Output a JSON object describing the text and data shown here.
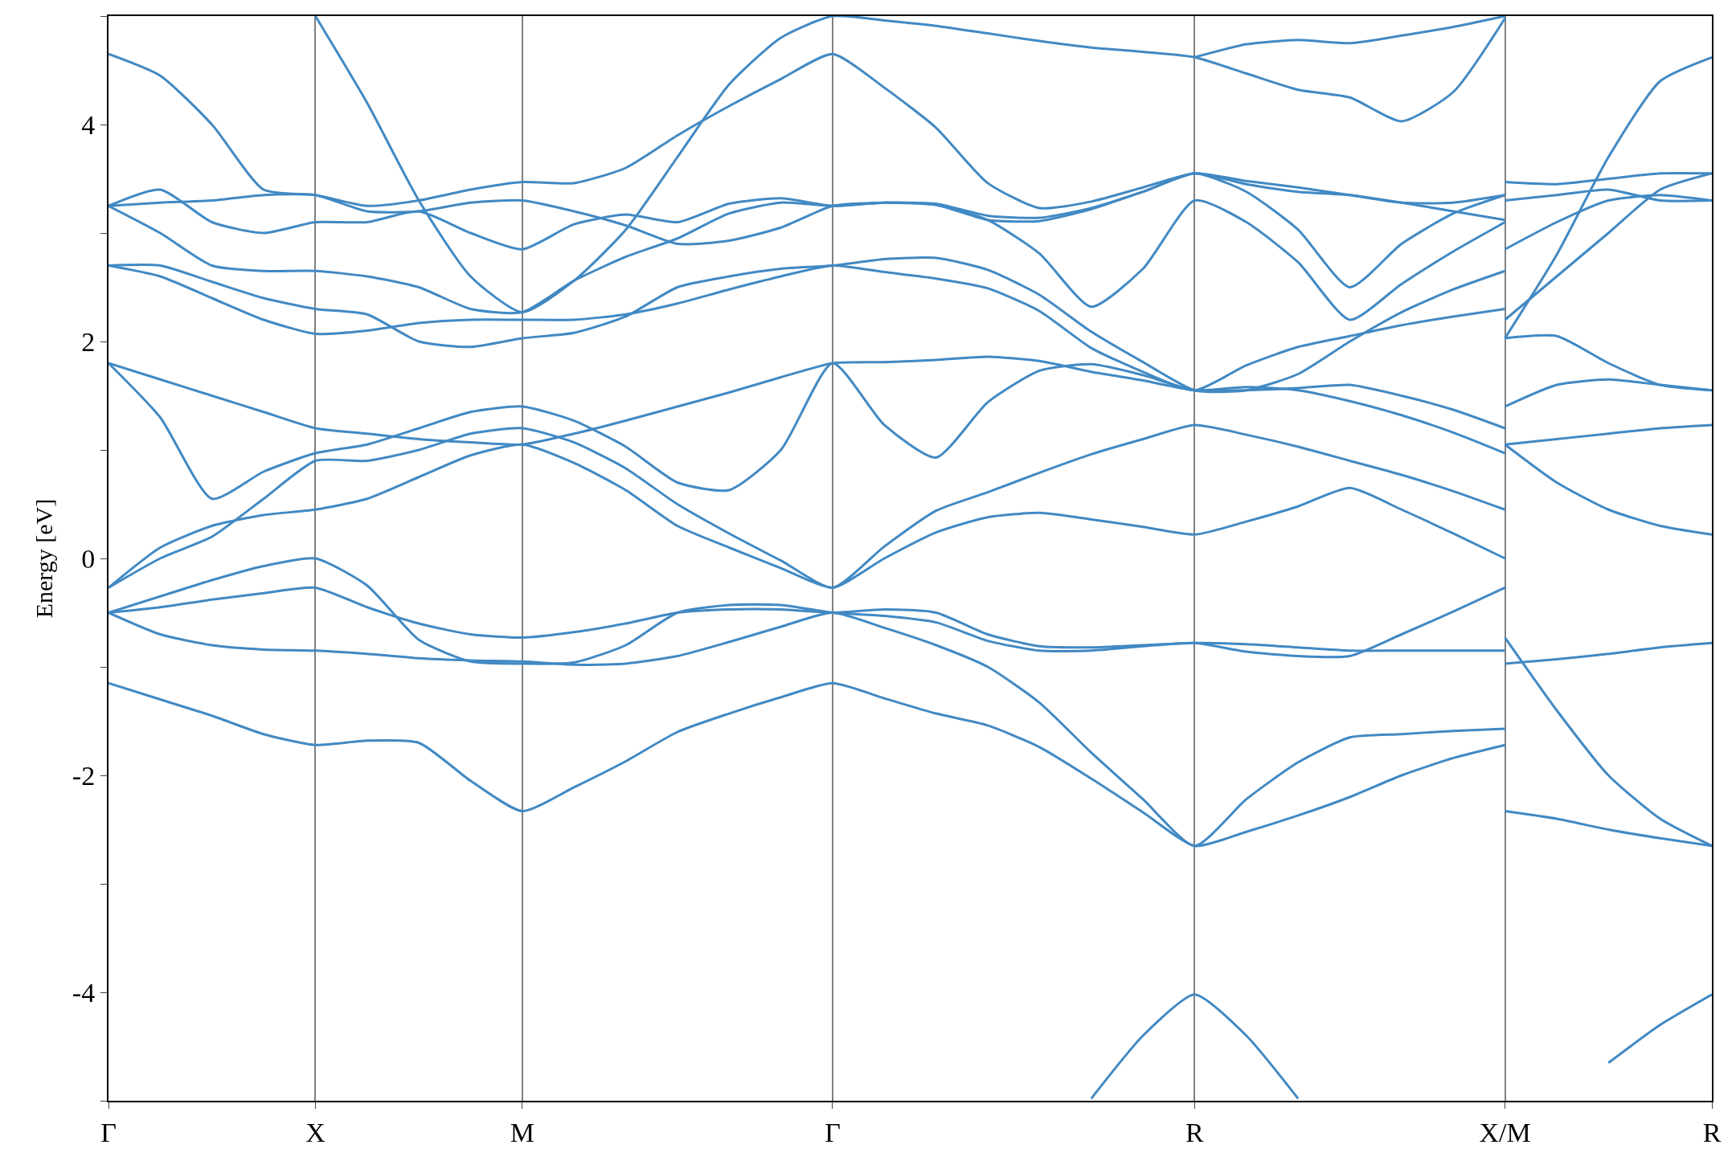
{
  "chart_data": {
    "type": "line",
    "ylabel": "Energy [eV]",
    "color": "#4189c3",
    "categories": [
      "Γ",
      null,
      null,
      null,
      "X",
      null,
      null,
      null,
      "M",
      null,
      null,
      null,
      null,
      null,
      "Γ",
      null,
      null,
      null,
      null,
      null,
      null,
      "R",
      null,
      null,
      null,
      null,
      null,
      "X/M",
      null,
      null,
      null,
      "R"
    ],
    "series": [
      {
        "values": [
          -1.15,
          -1.3,
          -1.45,
          -1.62,
          -1.72,
          -1.68,
          -1.7,
          -2.05,
          -2.33,
          -2.11,
          -1.87,
          -1.6,
          -1.43,
          -1.28,
          -1.15,
          -1.29,
          -1.43,
          -1.54,
          -1.74,
          -2.03,
          -2.34,
          -2.65,
          -2.52,
          -2.37,
          -2.2,
          -2.0,
          -1.84,
          -1.72,
          null,
          null,
          null,
          null
        ]
      },
      {
        "values": [
          -0.5,
          -0.7,
          -0.8,
          -0.84,
          -0.85,
          -0.88,
          -0.92,
          -0.94,
          -0.95,
          -0.98,
          -0.97,
          -0.9,
          -0.77,
          -0.63,
          -0.5,
          -0.64,
          -0.8,
          -1.0,
          -1.33,
          -1.79,
          -2.22,
          -2.65,
          -2.22,
          -1.88,
          -1.65,
          -1.62,
          -1.59,
          -1.57,
          null,
          null,
          null,
          null
        ]
      },
      {
        "values": [
          -0.5,
          -0.45,
          -0.38,
          -0.32,
          -0.27,
          -0.45,
          -0.6,
          -0.7,
          -0.73,
          -0.68,
          -0.6,
          -0.5,
          -0.47,
          -0.47,
          -0.5,
          -0.47,
          -0.5,
          -0.7,
          -0.81,
          -0.82,
          -0.8,
          -0.78,
          -0.79,
          -0.82,
          -0.85,
          -0.85,
          -0.85,
          -0.85,
          null,
          null,
          null,
          null
        ]
      },
      {
        "values": [
          -0.5,
          -0.35,
          -0.2,
          -0.07,
          0.0,
          -0.25,
          -0.75,
          -0.95,
          -0.97,
          -0.96,
          -0.8,
          -0.5,
          -0.43,
          -0.43,
          -0.5,
          -0.53,
          -0.59,
          -0.76,
          -0.85,
          -0.85,
          -0.81,
          -0.78,
          -0.86,
          -0.9,
          -0.9,
          -0.7,
          -0.49,
          -0.27,
          null,
          null,
          null,
          null
        ]
      },
      {
        "values": [
          -0.27,
          0.1,
          0.3,
          0.4,
          0.45,
          0.55,
          0.75,
          0.95,
          1.05,
          0.88,
          0.63,
          0.3,
          0.1,
          -0.09,
          -0.27,
          0.0,
          0.24,
          0.38,
          0.42,
          0.36,
          0.29,
          0.22,
          0.34,
          0.48,
          0.65,
          0.45,
          0.23,
          0.0,
          null,
          null,
          null,
          null
        ]
      },
      {
        "values": [
          -0.27,
          0.0,
          0.2,
          0.55,
          0.9,
          0.9,
          1.0,
          1.15,
          1.2,
          1.07,
          0.83,
          0.5,
          0.23,
          -0.02,
          -0.27,
          0.11,
          0.44,
          0.61,
          0.79,
          0.96,
          1.1,
          1.23,
          1.14,
          1.03,
          0.9,
          0.77,
          0.62,
          0.45,
          null,
          null,
          null,
          null
        ]
      },
      {
        "values": [
          1.8,
          1.3,
          0.55,
          0.8,
          0.97,
          1.05,
          1.2,
          1.35,
          1.4,
          1.27,
          1.03,
          0.7,
          0.63,
          1.0,
          1.8,
          1.23,
          0.93,
          1.44,
          1.73,
          1.79,
          1.69,
          1.55,
          1.58,
          1.55,
          1.45,
          1.32,
          1.16,
          0.97,
          null,
          null,
          null,
          null
        ]
      },
      {
        "values": [
          1.8,
          1.65,
          1.5,
          1.35,
          1.2,
          1.15,
          1.1,
          1.07,
          1.05,
          1.15,
          1.27,
          1.4,
          1.53,
          1.67,
          1.8,
          1.81,
          1.83,
          1.86,
          1.82,
          1.72,
          1.64,
          1.55,
          1.55,
          1.57,
          1.6,
          1.5,
          1.37,
          1.2,
          null,
          null,
          null,
          null
        ]
      },
      {
        "values": [
          2.7,
          2.6,
          2.4,
          2.2,
          2.07,
          2.1,
          2.17,
          2.2,
          2.2,
          2.2,
          2.25,
          2.35,
          2.48,
          2.6,
          2.7,
          2.64,
          2.58,
          2.49,
          2.28,
          1.94,
          1.72,
          1.55,
          1.78,
          1.95,
          2.05,
          2.15,
          2.23,
          2.3,
          null,
          null,
          null,
          null
        ]
      },
      {
        "values": [
          2.7,
          2.7,
          2.55,
          2.4,
          2.3,
          2.25,
          2.0,
          1.95,
          2.03,
          2.08,
          2.23,
          2.5,
          2.6,
          2.67,
          2.7,
          2.76,
          2.77,
          2.66,
          2.43,
          2.09,
          1.81,
          1.55,
          1.55,
          1.7,
          2.0,
          2.27,
          2.48,
          2.65,
          null,
          null,
          null,
          null
        ]
      },
      {
        "values": [
          3.25,
          3.0,
          2.7,
          2.65,
          2.65,
          2.6,
          2.5,
          2.3,
          2.27,
          2.56,
          2.78,
          2.95,
          3.18,
          3.28,
          3.25,
          3.28,
          3.26,
          3.12,
          2.81,
          2.32,
          2.67,
          3.3,
          3.1,
          2.73,
          2.2,
          2.53,
          2.83,
          3.1,
          null,
          null,
          null,
          null
        ]
      },
      {
        "values": [
          3.25,
          3.4,
          3.1,
          3.0,
          3.1,
          3.1,
          3.2,
          3.0,
          2.85,
          3.08,
          3.17,
          3.1,
          3.27,
          3.32,
          3.25,
          3.28,
          3.26,
          3.12,
          3.11,
          3.22,
          3.38,
          3.55,
          3.38,
          3.03,
          2.5,
          2.9,
          3.18,
          3.35,
          null,
          null,
          null,
          null
        ]
      },
      {
        "values": [
          3.25,
          3.28,
          3.3,
          3.35,
          3.35,
          3.2,
          3.2,
          3.28,
          3.3,
          3.2,
          3.07,
          2.9,
          2.93,
          3.05,
          3.25,
          3.28,
          3.27,
          3.16,
          3.14,
          3.23,
          3.38,
          3.55,
          3.45,
          3.38,
          3.35,
          3.28,
          3.2,
          3.12,
          null,
          null,
          null,
          null
        ]
      },
      {
        "values": [
          4.65,
          4.45,
          4.0,
          3.4,
          3.35,
          3.25,
          3.3,
          3.4,
          3.47,
          3.46,
          3.6,
          3.9,
          4.17,
          4.42,
          4.65,
          4.34,
          3.97,
          3.46,
          3.23,
          3.29,
          3.42,
          3.55,
          3.48,
          3.42,
          3.35,
          3.28,
          3.28,
          3.35,
          null,
          null,
          null,
          null
        ]
      },
      {
        "values": [
          null,
          null,
          null,
          null,
          5.0,
          4.2,
          3.3,
          2.6,
          2.27,
          2.56,
          3.03,
          3.7,
          4.37,
          4.8,
          5.0,
          4.96,
          4.91,
          4.84,
          4.77,
          4.71,
          4.67,
          4.62,
          4.47,
          4.32,
          4.25,
          4.03,
          4.3,
          4.98,
          null,
          null,
          null,
          null
        ]
      },
      {
        "values": [
          null,
          null,
          null,
          null,
          null,
          null,
          null,
          null,
          null,
          null,
          null,
          null,
          null,
          null,
          null,
          null,
          null,
          null,
          null,
          null,
          null,
          4.62,
          4.74,
          4.78,
          4.75,
          4.82,
          4.9,
          5.0,
          null,
          null,
          null,
          null
        ]
      },
      {
        "values": [
          null,
          null,
          null,
          null,
          null,
          null,
          null,
          null,
          null,
          null,
          null,
          null,
          null,
          null,
          null,
          null,
          null,
          null,
          null,
          -4.98,
          -4.4,
          -4.02,
          -4.4,
          -4.98,
          null,
          null,
          null,
          null,
          null,
          null,
          null,
          null
        ]
      },
      {
        "values": [
          null,
          null,
          null,
          null,
          null,
          null,
          null,
          null,
          null,
          null,
          null,
          null,
          null,
          null,
          null,
          null,
          null,
          null,
          null,
          null,
          null,
          null,
          null,
          null,
          null,
          null,
          null,
          -2.33,
          -2.4,
          -2.5,
          -2.58,
          -2.65
        ]
      },
      {
        "values": [
          null,
          null,
          null,
          null,
          null,
          null,
          null,
          null,
          null,
          null,
          null,
          null,
          null,
          null,
          null,
          null,
          null,
          null,
          null,
          null,
          null,
          null,
          null,
          null,
          null,
          null,
          null,
          -0.73,
          -1.4,
          -2.0,
          -2.4,
          -2.65
        ]
      },
      {
        "values": [
          null,
          null,
          null,
          null,
          null,
          null,
          null,
          null,
          null,
          null,
          null,
          null,
          null,
          null,
          null,
          null,
          null,
          null,
          null,
          null,
          null,
          null,
          null,
          null,
          null,
          null,
          null,
          -0.97,
          -0.93,
          -0.88,
          -0.82,
          -0.78
        ]
      },
      {
        "values": [
          null,
          null,
          null,
          null,
          null,
          null,
          null,
          null,
          null,
          null,
          null,
          null,
          null,
          null,
          null,
          null,
          null,
          null,
          null,
          null,
          null,
          null,
          null,
          null,
          null,
          null,
          null,
          1.05,
          0.7,
          0.45,
          0.3,
          0.22
        ]
      },
      {
        "values": [
          null,
          null,
          null,
          null,
          null,
          null,
          null,
          null,
          null,
          null,
          null,
          null,
          null,
          null,
          null,
          null,
          null,
          null,
          null,
          null,
          null,
          null,
          null,
          null,
          null,
          null,
          null,
          1.05,
          1.1,
          1.15,
          1.2,
          1.23
        ]
      },
      {
        "values": [
          null,
          null,
          null,
          null,
          null,
          null,
          null,
          null,
          null,
          null,
          null,
          null,
          null,
          null,
          null,
          null,
          null,
          null,
          null,
          null,
          null,
          null,
          null,
          null,
          null,
          null,
          null,
          1.4,
          1.6,
          1.65,
          1.6,
          1.55
        ]
      },
      {
        "values": [
          null,
          null,
          null,
          null,
          null,
          null,
          null,
          null,
          null,
          null,
          null,
          null,
          null,
          null,
          null,
          null,
          null,
          null,
          null,
          null,
          null,
          null,
          null,
          null,
          null,
          null,
          null,
          2.03,
          2.05,
          1.8,
          1.6,
          1.55
        ]
      },
      {
        "values": [
          null,
          null,
          null,
          null,
          null,
          null,
          null,
          null,
          null,
          null,
          null,
          null,
          null,
          null,
          null,
          null,
          null,
          null,
          null,
          null,
          null,
          null,
          null,
          null,
          null,
          null,
          null,
          2.2,
          2.6,
          3.0,
          3.4,
          3.55
        ]
      },
      {
        "values": [
          null,
          null,
          null,
          null,
          null,
          null,
          null,
          null,
          null,
          null,
          null,
          null,
          null,
          null,
          null,
          null,
          null,
          null,
          null,
          null,
          null,
          null,
          null,
          null,
          null,
          null,
          null,
          2.85,
          3.1,
          3.3,
          3.35,
          3.3
        ]
      },
      {
        "values": [
          null,
          null,
          null,
          null,
          null,
          null,
          null,
          null,
          null,
          null,
          null,
          null,
          null,
          null,
          null,
          null,
          null,
          null,
          null,
          null,
          null,
          null,
          null,
          null,
          null,
          null,
          null,
          3.47,
          3.45,
          3.5,
          3.55,
          3.55
        ]
      },
      {
        "values": [
          null,
          null,
          null,
          null,
          null,
          null,
          null,
          null,
          null,
          null,
          null,
          null,
          null,
          null,
          null,
          null,
          null,
          null,
          null,
          null,
          null,
          null,
          null,
          null,
          null,
          null,
          null,
          3.3,
          3.35,
          3.4,
          3.3,
          3.3
        ]
      },
      {
        "values": [
          null,
          null,
          null,
          null,
          null,
          null,
          null,
          null,
          null,
          null,
          null,
          null,
          null,
          null,
          null,
          null,
          null,
          null,
          null,
          null,
          null,
          null,
          null,
          null,
          null,
          null,
          null,
          2.03,
          2.8,
          3.7,
          4.4,
          4.62
        ]
      },
      {
        "values": [
          null,
          null,
          null,
          null,
          null,
          null,
          null,
          null,
          null,
          null,
          null,
          null,
          null,
          null,
          null,
          null,
          null,
          null,
          null,
          null,
          null,
          null,
          null,
          null,
          null,
          null,
          null,
          null,
          null,
          -4.65,
          -4.3,
          -4.02
        ]
      }
    ],
    "ylim": [
      -5,
      5
    ],
    "yticks": [
      {
        "value": -5,
        "label": null
      },
      -4,
      {
        "value": -3,
        "label": null
      },
      -2,
      {
        "value": -1,
        "label": null
      },
      0,
      {
        "value": 1,
        "label": null
      },
      2,
      {
        "value": 3,
        "label": null
      },
      4,
      {
        "value": 5,
        "label": null
      }
    ],
    "marker": "none",
    "line_style": "solid",
    "grid": "x"
  }
}
